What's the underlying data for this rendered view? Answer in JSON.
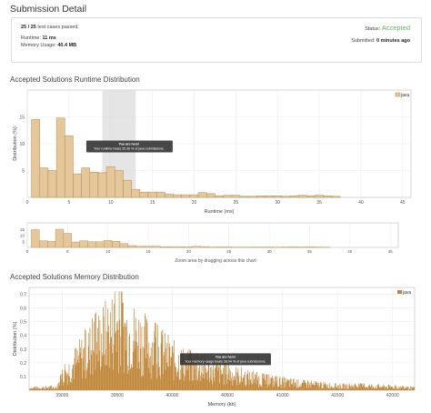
{
  "header": {
    "title": "Submission Detail"
  },
  "summary": {
    "cases_passed": "25 / 25",
    "cases_label": "test cases passed.",
    "runtime_label": "Runtime:",
    "runtime_value": "11 ms",
    "memory_label": "Memory Usage:",
    "memory_value": "40.4 MB",
    "status_label": "Status:",
    "status_value": "Accepted",
    "submitted_label": "Submitted:",
    "submitted_value": "0 minutes ago"
  },
  "runtime_section": {
    "title": "Accepted Solutions Runtime Distribution",
    "zoom_caption": "Zoom area by dragging across this chart"
  },
  "memory_section": {
    "title": "Accepted Solutions Memory Distribution"
  },
  "colors": {
    "bar_fill": "#e4c79b",
    "bar_stroke": "#b58a4c",
    "mem_bar": "#c0873a",
    "accepted": "#5cb85c",
    "selection": "#dcdcdc"
  },
  "chart_data": [
    {
      "type": "bar",
      "title": "",
      "xlabel": "Runtime (ms)",
      "ylabel": "Distribution (%)",
      "xlim": [
        0,
        46
      ],
      "ylim": [
        0,
        20
      ],
      "xticks": [
        0,
        5,
        10,
        15,
        20,
        25,
        30,
        35,
        40,
        45
      ],
      "yticks": [
        5,
        10,
        15
      ],
      "legend": {
        "label": "java",
        "position": "top-right"
      },
      "bin_width": 1,
      "x": [
        1,
        2,
        3,
        4,
        5,
        6,
        7,
        8,
        9,
        10,
        11,
        12,
        13,
        14,
        15,
        16,
        17,
        18,
        19,
        20,
        21,
        22,
        23,
        24,
        25,
        26,
        27,
        28,
        29,
        30,
        31,
        32,
        33,
        34,
        35,
        36,
        37,
        38
      ],
      "values": [
        14.5,
        5.5,
        5,
        14.8,
        11.5,
        4.4,
        5.5,
        4.7,
        4.6,
        5.7,
        5,
        3.2,
        1.5,
        1,
        1,
        1,
        0.6,
        0.5,
        0.5,
        0.5,
        0.9,
        0.7,
        0.3,
        0.4,
        0.4,
        0.2,
        0.2,
        0.3,
        0.3,
        0.3,
        0.2,
        0.3,
        0.4,
        0.3,
        0.4,
        0.3,
        0.2,
        0
      ],
      "highlight_range": [
        9,
        13
      ],
      "tooltip": {
        "title": "You are here!",
        "text": "Your runtime beats 25.36 % of java submissions.",
        "x": 11
      }
    },
    {
      "type": "bar",
      "title": "",
      "xlabel": "",
      "ylabel": "",
      "xlim": [
        0,
        46
      ],
      "ylim": [
        0,
        20
      ],
      "xticks": [
        0,
        5,
        10,
        15,
        20,
        25,
        30,
        35,
        40,
        45
      ],
      "yticks": [
        5,
        10,
        15
      ],
      "caption": "Zoom area by dragging across this chart"
    },
    {
      "type": "bar",
      "title": "",
      "xlabel": "Memory (kb)",
      "ylabel": "Distribution (%)",
      "xlim": [
        38700,
        42200
      ],
      "ylim": [
        0,
        0.75
      ],
      "xticks": [
        39000,
        39500,
        40000,
        40500,
        41000,
        41500,
        42000
      ],
      "yticks": [
        0.1,
        0.2,
        0.3,
        0.4,
        0.5,
        0.6,
        0.7
      ],
      "legend": {
        "label": "java",
        "position": "top-right"
      },
      "bin_width": 5,
      "envelope": {
        "x": [
          38700,
          38950,
          39000,
          39100,
          39200,
          39300,
          39400,
          39500,
          39600,
          39700,
          39800,
          39900,
          40000,
          40100,
          40200,
          40300,
          40400,
          40500,
          40600,
          40800,
          41000,
          41200,
          41500,
          41800,
          42000,
          42200
        ],
        "y": [
          0.02,
          0.03,
          0.12,
          0.25,
          0.35,
          0.45,
          0.55,
          0.62,
          0.55,
          0.5,
          0.42,
          0.36,
          0.3,
          0.26,
          0.22,
          0.2,
          0.18,
          0.16,
          0.14,
          0.1,
          0.08,
          0.06,
          0.04,
          0.04,
          0.03,
          0.02
        ]
      },
      "tooltip": {
        "title": "You are here!",
        "text": "Your memory usage beats 28.04 % of java submissions.",
        "x": 40400
      }
    }
  ]
}
